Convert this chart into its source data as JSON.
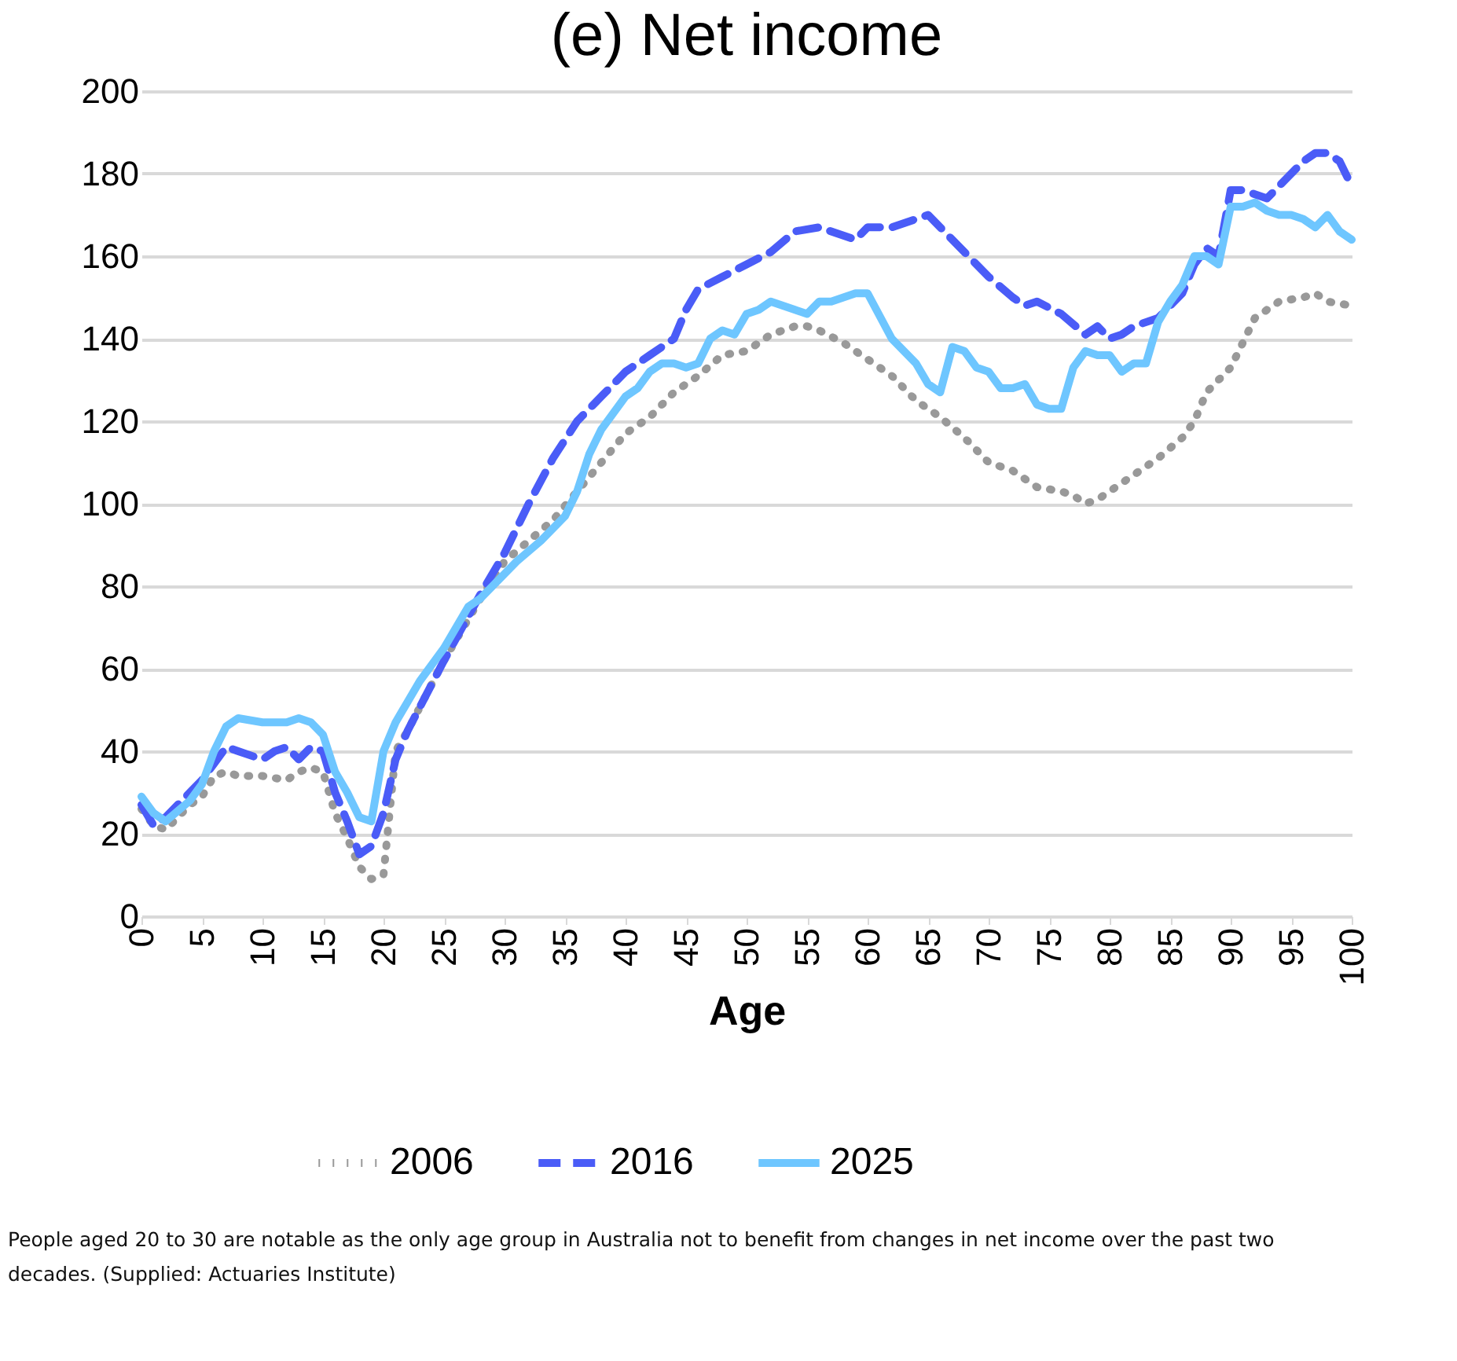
{
  "chart_data": {
    "type": "line",
    "title": "(e) Net income",
    "xlabel": "Age",
    "xlim": [
      0,
      100
    ],
    "xticks": [
      0,
      5,
      10,
      15,
      20,
      25,
      30,
      35,
      40,
      45,
      50,
      55,
      60,
      65,
      70,
      75,
      80,
      85,
      90,
      95,
      100
    ],
    "ylim": [
      0,
      200
    ],
    "yticks": [
      0,
      20,
      40,
      60,
      80,
      100,
      120,
      140,
      160,
      180,
      200
    ],
    "grid": "y",
    "legend": "bottom",
    "marker": "none",
    "series": [
      {
        "name": "2006",
        "color": "#999999",
        "line_style": "dotted",
        "x": [
          0,
          1,
          2,
          4,
          5,
          6,
          7,
          8,
          10,
          12,
          13,
          14,
          15,
          16,
          17,
          18,
          19,
          20,
          21,
          22,
          25,
          28,
          30,
          32,
          34,
          36,
          38,
          40,
          42,
          44,
          46,
          48,
          50,
          52,
          54,
          55,
          56,
          58,
          60,
          62,
          64,
          66,
          68,
          70,
          72,
          74,
          76,
          77,
          78,
          79,
          80,
          82,
          84,
          86,
          87,
          88,
          90,
          91,
          92,
          93,
          94,
          96,
          97,
          98,
          100
        ],
        "values": [
          26,
          22,
          21,
          27,
          29,
          34,
          35,
          34,
          34,
          33,
          35,
          36,
          35,
          25,
          19,
          12,
          9,
          10,
          40,
          45,
          62,
          77,
          86,
          91,
          96,
          103,
          110,
          117,
          121,
          127,
          131,
          136,
          137,
          141,
          143,
          143,
          142,
          139,
          135,
          131,
          125,
          121,
          116,
          110,
          108,
          104,
          103,
          102,
          100,
          101,
          103,
          107,
          111,
          116,
          120,
          127,
          133,
          139,
          145,
          147,
          149,
          150,
          151,
          149,
          148
        ]
      },
      {
        "name": "2016",
        "color": "#4a5cf7",
        "line_style": "dashed",
        "x": [
          0,
          1,
          2,
          4,
          5,
          6,
          7,
          8,
          10,
          11,
          12,
          13,
          14,
          15,
          16,
          17,
          18,
          19,
          20,
          21,
          22,
          25,
          28,
          30,
          32,
          34,
          36,
          38,
          40,
          42,
          44,
          45,
          46,
          48,
          50,
          52,
          54,
          56,
          58,
          59,
          60,
          62,
          64,
          65,
          66,
          68,
          70,
          72,
          73,
          74,
          76,
          78,
          79,
          80,
          81,
          82,
          84,
          86,
          87,
          88,
          89,
          90,
          91,
          92,
          93,
          94,
          96,
          97,
          98,
          99,
          100
        ],
        "values": [
          27,
          22,
          24,
          30,
          33,
          37,
          41,
          40,
          38,
          40,
          41,
          38,
          41,
          40,
          30,
          23,
          15,
          17,
          25,
          38,
          45,
          62,
          78,
          88,
          100,
          111,
          120,
          126,
          132,
          136,
          140,
          147,
          152,
          155,
          158,
          161,
          166,
          167,
          165,
          164,
          167,
          167,
          169,
          170,
          167,
          161,
          155,
          150,
          148,
          149,
          146,
          141,
          143,
          140,
          141,
          143,
          145,
          151,
          158,
          162,
          160,
          176,
          176,
          175,
          174,
          177,
          183,
          185,
          185,
          183,
          177
        ]
      },
      {
        "name": "2025",
        "color": "#6ec6ff",
        "line_style": "solid",
        "x": [
          0,
          1,
          2,
          4,
          5,
          6,
          7,
          8,
          10,
          12,
          13,
          14,
          15,
          16,
          17,
          18,
          19,
          20,
          21,
          22,
          23,
          25,
          27,
          28,
          30,
          31,
          33,
          35,
          36,
          37,
          38,
          40,
          41,
          42,
          43,
          44,
          45,
          46,
          47,
          48,
          49,
          50,
          51,
          52,
          53,
          54,
          55,
          56,
          57,
          58,
          59,
          60,
          62,
          63,
          64,
          65,
          66,
          67,
          68,
          69,
          70,
          71,
          72,
          73,
          74,
          75,
          76,
          77,
          78,
          79,
          80,
          81,
          82,
          83,
          84,
          85,
          86,
          87,
          88,
          89,
          90,
          91,
          92,
          93,
          94,
          95,
          96,
          97,
          98,
          99,
          100
        ],
        "values": [
          29,
          25,
          23,
          28,
          32,
          40,
          46,
          48,
          47,
          47,
          48,
          47,
          44,
          35,
          30,
          24,
          23,
          40,
          47,
          52,
          57,
          65,
          75,
          77,
          83,
          86,
          91,
          97,
          103,
          112,
          118,
          126,
          128,
          132,
          134,
          134,
          133,
          134,
          140,
          142,
          141,
          146,
          147,
          149,
          148,
          147,
          146,
          149,
          149,
          150,
          151,
          151,
          140,
          137,
          134,
          129,
          127,
          138,
          137,
          133,
          132,
          128,
          128,
          129,
          124,
          123,
          123,
          133,
          137,
          136,
          136,
          132,
          134,
          134,
          144,
          149,
          153,
          160,
          160,
          158,
          172,
          172,
          173,
          171,
          170,
          170,
          169,
          167,
          170,
          166,
          164
        ]
      }
    ],
    "annotations": [
      "People aged 20 to 30 are notable as the only age group in Australia not to benefit from changes in net income over the past two decades. (Supplied: Actuaries Institute)"
    ]
  }
}
